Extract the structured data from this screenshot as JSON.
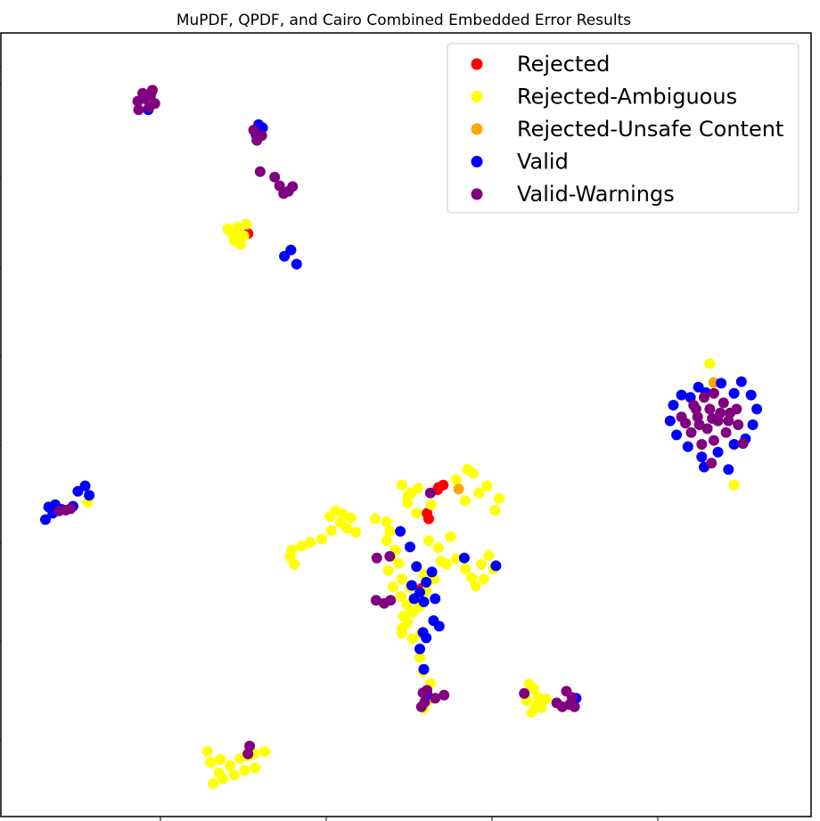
{
  "chart_data": {
    "type": "scatter",
    "title": "MuPDF, QPDF, and Cairo Combined Embedded Error Results",
    "xlabel": "",
    "ylabel": "",
    "xlim": [
      0,
      100
    ],
    "ylim": [
      0,
      100
    ],
    "tick_labels_shown": false,
    "grid": false,
    "legend_position": "top-right",
    "series": [
      {
        "name": "Rejected",
        "color": "#ff0000",
        "points": [
          [
            30.5,
            74.4
          ],
          [
            54.6,
            42.3
          ],
          [
            54.0,
            42.0
          ],
          [
            52.6,
            38.7
          ],
          [
            52.8,
            38.0
          ],
          [
            51.9,
            29.1
          ],
          [
            53.9,
            41.7
          ]
        ]
      },
      {
        "name": "Rejected-Ambiguous",
        "color": "#ffff00",
        "points": [
          [
            28.4,
            74.6
          ],
          [
            29.2,
            75.2
          ],
          [
            30.0,
            74.1
          ],
          [
            28.8,
            73.5
          ],
          [
            29.6,
            73.0
          ],
          [
            28.0,
            75.0
          ],
          [
            30.3,
            75.6
          ],
          [
            29.0,
            74.0
          ],
          [
            35.7,
            33.1
          ],
          [
            36.2,
            32.2
          ],
          [
            37.1,
            34.5
          ],
          [
            35.9,
            34.0
          ],
          [
            38.2,
            35.0
          ],
          [
            39.6,
            35.4
          ],
          [
            40.8,
            36.5
          ],
          [
            41.9,
            37.5
          ],
          [
            41.3,
            39.0
          ],
          [
            42.2,
            38.6
          ],
          [
            43.2,
            38.1
          ],
          [
            42.7,
            36.8
          ],
          [
            43.8,
            36.3
          ],
          [
            40.6,
            38.3
          ],
          [
            46.2,
            38.0
          ],
          [
            47.6,
            37.6
          ],
          [
            48.0,
            36.4
          ],
          [
            47.6,
            35.2
          ],
          [
            48.7,
            34.0
          ],
          [
            48.1,
            33.2
          ],
          [
            49.1,
            32.3
          ],
          [
            47.8,
            31.4
          ],
          [
            49.5,
            30.3
          ],
          [
            50.5,
            29.2
          ],
          [
            49.4,
            28.1
          ],
          [
            50.1,
            27.0
          ],
          [
            50.9,
            26.1
          ],
          [
            49.7,
            25.6
          ],
          [
            50.2,
            24.8
          ],
          [
            49.5,
            23.4
          ],
          [
            50.8,
            22.7
          ],
          [
            51.7,
            26.8
          ],
          [
            52.5,
            28.8
          ],
          [
            53.5,
            30.3
          ],
          [
            54.3,
            32.6
          ],
          [
            54.0,
            34.3
          ],
          [
            55.5,
            35.7
          ],
          [
            55.0,
            32.2
          ],
          [
            56.2,
            32.9
          ],
          [
            57.3,
            31.6
          ],
          [
            58.1,
            30.5
          ],
          [
            59.3,
            32.2
          ],
          [
            60.2,
            33.3
          ],
          [
            59.6,
            30.3
          ],
          [
            60.8,
            31.6
          ],
          [
            58.6,
            29.4
          ],
          [
            61.5,
            40.6
          ],
          [
            61.0,
            39.1
          ],
          [
            60.0,
            42.2
          ],
          [
            59.0,
            41.3
          ],
          [
            58.3,
            43.8
          ],
          [
            57.6,
            44.3
          ],
          [
            56.2,
            43.0
          ],
          [
            57.3,
            40.3
          ],
          [
            50.2,
            40.8
          ],
          [
            49.5,
            42.3
          ],
          [
            50.6,
            41.3
          ],
          [
            51.3,
            38.7
          ],
          [
            52.8,
            35.2
          ],
          [
            53.1,
            39.8
          ],
          [
            51.5,
            41.9
          ],
          [
            50.2,
            40.0
          ],
          [
            48.4,
            29.3
          ],
          [
            49.5,
            24.0
          ],
          [
            51.8,
            23.3
          ],
          [
            52.2,
            30.9
          ],
          [
            52.7,
            14.8
          ],
          [
            52.2,
            13.8
          ],
          [
            53.0,
            17.0
          ],
          [
            52.1,
            18.5
          ],
          [
            51.7,
            20.3
          ],
          [
            64.9,
            14.8
          ],
          [
            65.5,
            13.3
          ],
          [
            66.3,
            15.2
          ],
          [
            65.8,
            16.3
          ],
          [
            67.3,
            15.0
          ],
          [
            66.7,
            13.9
          ],
          [
            65.2,
            16.9
          ],
          [
            66.1,
            14.1
          ],
          [
            90.5,
            42.3
          ],
          [
            87.5,
            57.8
          ],
          [
            25.9,
            6.9
          ],
          [
            26.9,
            5.6
          ],
          [
            27.1,
            7.3
          ],
          [
            28.3,
            6.5
          ],
          [
            29.5,
            7.4
          ],
          [
            30.5,
            7.7
          ],
          [
            31.3,
            8.0
          ],
          [
            32.6,
            8.3
          ],
          [
            31.4,
            6.2
          ],
          [
            30.1,
            5.9
          ],
          [
            28.8,
            5.3
          ],
          [
            27.4,
            4.8
          ],
          [
            25.5,
            8.3
          ],
          [
            26.2,
            4.2
          ],
          [
            10.7,
            40.1
          ]
        ]
      },
      {
        "name": "Rejected-Unsafe Content",
        "color": "#ffa500",
        "points": [
          [
            56.5,
            41.8
          ],
          [
            31.9,
            87.4
          ],
          [
            88.0,
            55.4
          ]
        ]
      },
      {
        "name": "Valid",
        "color": "#0000ff",
        "points": [
          [
            18.2,
            90.2
          ],
          [
            31.8,
            88.3
          ],
          [
            32.3,
            87.9
          ],
          [
            31.5,
            87.0
          ],
          [
            35.0,
            71.5
          ],
          [
            35.8,
            72.3
          ],
          [
            36.5,
            70.5
          ],
          [
            5.5,
            37.9
          ],
          [
            6.4,
            38.7
          ],
          [
            7.5,
            39.2
          ],
          [
            6.7,
            39.8
          ],
          [
            9.5,
            41.5
          ],
          [
            10.4,
            42.2
          ],
          [
            10.9,
            41.0
          ],
          [
            8.9,
            39.6
          ],
          [
            5.9,
            39.5
          ],
          [
            49.3,
            36.4
          ],
          [
            50.5,
            34.4
          ],
          [
            51.3,
            31.9
          ],
          [
            53.2,
            31.2
          ],
          [
            52.5,
            29.9
          ],
          [
            51.7,
            28.6
          ],
          [
            51.0,
            27.8
          ],
          [
            50.7,
            29.5
          ],
          [
            52.2,
            27.4
          ],
          [
            53.6,
            27.8
          ],
          [
            53.4,
            25.0
          ],
          [
            54.1,
            24.3
          ],
          [
            52.5,
            22.8
          ],
          [
            52.1,
            23.5
          ],
          [
            51.7,
            21.4
          ],
          [
            52.2,
            18.8
          ],
          [
            52.6,
            15.6
          ],
          [
            57.2,
            33.0
          ],
          [
            61.1,
            32.0
          ],
          [
            71.0,
            15.1
          ],
          [
            85.1,
            53.5
          ],
          [
            86.1,
            54.8
          ],
          [
            87.0,
            54.1
          ],
          [
            88.9,
            55.3
          ],
          [
            90.5,
            54.0
          ],
          [
            91.4,
            55.5
          ],
          [
            92.6,
            53.8
          ],
          [
            93.3,
            52.0
          ],
          [
            92.8,
            50.0
          ],
          [
            91.9,
            48.2
          ],
          [
            90.5,
            47.5
          ],
          [
            88.5,
            46.5
          ],
          [
            86.5,
            45.9
          ],
          [
            84.8,
            47.2
          ],
          [
            83.4,
            48.7
          ],
          [
            82.6,
            50.5
          ],
          [
            83.0,
            52.5
          ],
          [
            84.0,
            53.8
          ],
          [
            86.8,
            44.6
          ],
          [
            89.8,
            44.3
          ]
        ]
      },
      {
        "name": "Valid-Warnings",
        "color": "#800080",
        "points": [
          [
            16.9,
            91.3
          ],
          [
            17.5,
            92.3
          ],
          [
            18.5,
            92.1
          ],
          [
            19.0,
            91.0
          ],
          [
            18.3,
            90.5
          ],
          [
            17.0,
            90.2
          ],
          [
            17.8,
            91.6
          ],
          [
            18.7,
            92.7
          ],
          [
            31.2,
            87.6
          ],
          [
            32.2,
            86.9
          ],
          [
            31.6,
            86.3
          ],
          [
            32.0,
            82.3
          ],
          [
            33.8,
            81.6
          ],
          [
            34.4,
            80.5
          ],
          [
            35.5,
            79.8
          ],
          [
            36.0,
            80.4
          ],
          [
            34.9,
            79.5
          ],
          [
            7.2,
            39.0
          ],
          [
            8.0,
            39.1
          ],
          [
            8.6,
            39.3
          ],
          [
            46.4,
            33.0
          ],
          [
            48.0,
            33.2
          ],
          [
            46.3,
            27.6
          ],
          [
            47.3,
            27.2
          ],
          [
            48.1,
            27.6
          ],
          [
            52.6,
            16.1
          ],
          [
            52.3,
            14.6
          ],
          [
            53.6,
            15.1
          ],
          [
            52.1,
            15.8
          ],
          [
            54.7,
            15.5
          ],
          [
            51.9,
            14.0
          ],
          [
            53.0,
            41.3
          ],
          [
            68.6,
            14.5
          ],
          [
            69.3,
            14.0
          ],
          [
            70.2,
            14.3
          ],
          [
            70.5,
            15.2
          ],
          [
            69.8,
            16.0
          ],
          [
            70.8,
            14.0
          ],
          [
            64.6,
            15.7
          ],
          [
            30.7,
            9.0
          ],
          [
            30.5,
            8.0
          ],
          [
            84.0,
            51.0
          ],
          [
            85.5,
            52.5
          ],
          [
            86.8,
            53.5
          ],
          [
            88.0,
            54.0
          ],
          [
            89.2,
            52.8
          ],
          [
            90.0,
            51.5
          ],
          [
            91.0,
            50.0
          ],
          [
            89.5,
            49.0
          ],
          [
            88.0,
            48.0
          ],
          [
            86.5,
            47.5
          ],
          [
            85.2,
            49.0
          ],
          [
            84.5,
            50.2
          ],
          [
            86.0,
            51.0
          ],
          [
            87.5,
            52.0
          ],
          [
            88.5,
            50.5
          ],
          [
            87.2,
            49.5
          ],
          [
            86.2,
            50.0
          ],
          [
            88.8,
            51.5
          ],
          [
            87.8,
            50.8
          ],
          [
            85.8,
            52.0
          ],
          [
            89.8,
            50.5
          ],
          [
            90.8,
            52.0
          ],
          [
            91.6,
            47.6
          ],
          [
            87.7,
            45.1
          ]
        ]
      }
    ]
  }
}
